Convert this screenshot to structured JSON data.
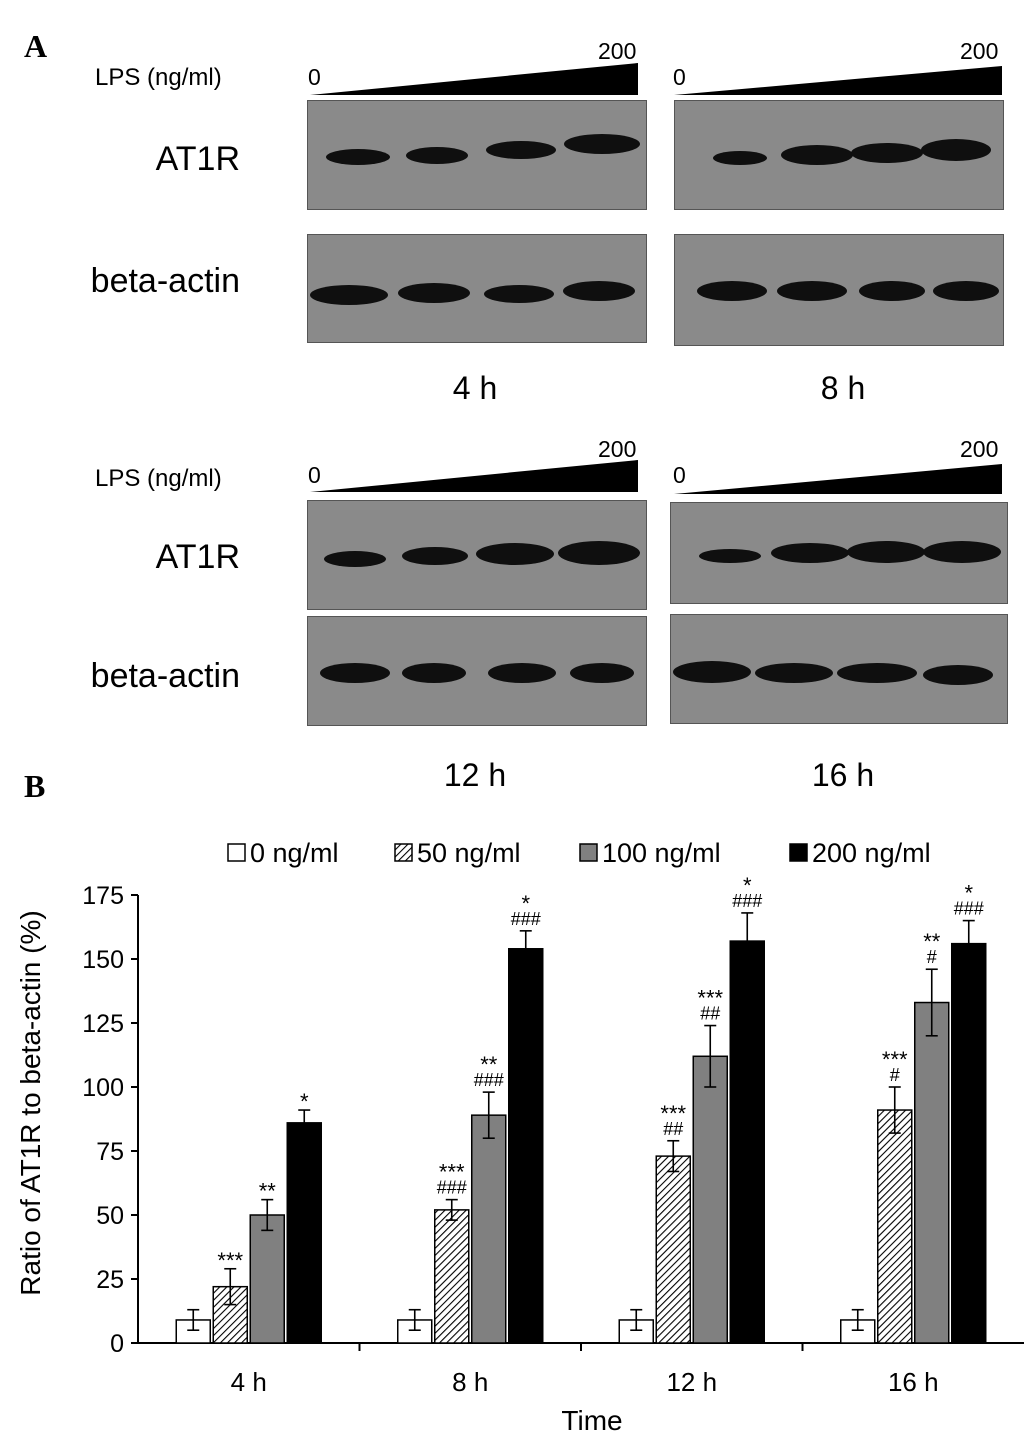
{
  "panel_a": {
    "letter": "A",
    "lps_label": "LPS (ng/ml)",
    "dose_start": "0",
    "dose_end": "200",
    "row_labels": {
      "target": "AT1R",
      "control": "beta-actin"
    },
    "blots": [
      {
        "time": "4 h"
      },
      {
        "time": "8 h"
      },
      {
        "time": "12 h"
      },
      {
        "time": "16 h"
      }
    ]
  },
  "panel_b": {
    "letter": "B"
  },
  "chart_data": {
    "type": "bar",
    "ylabel": "Ratio of AT1R to beta-actin (%)",
    "xlabel": "Time",
    "categories": [
      "4 h",
      "8 h",
      "12 h",
      "16 h"
    ],
    "ylim": [
      0,
      175
    ],
    "yticks": [
      "0",
      "25",
      "50",
      "75",
      "100",
      "125",
      "150",
      "175"
    ],
    "legend_position": "top",
    "series": [
      {
        "name": "0 ng/ml",
        "values": [
          9,
          9,
          9,
          9
        ],
        "errors": [
          4,
          4,
          4,
          4
        ],
        "fill": "white",
        "annotations": [
          [
            "",
            ""
          ],
          [
            "",
            ""
          ],
          [
            "",
            ""
          ],
          [
            "",
            ""
          ]
        ]
      },
      {
        "name": "50 ng/ml",
        "values": [
          22,
          52,
          73,
          91
        ],
        "errors": [
          7,
          4,
          6,
          9
        ],
        "fill": "hatch",
        "annotations": [
          [
            "***",
            ""
          ],
          [
            "***",
            "###"
          ],
          [
            "***",
            "##"
          ],
          [
            "***",
            "#"
          ]
        ]
      },
      {
        "name": "100 ng/ml",
        "values": [
          50,
          89,
          112,
          133
        ],
        "errors": [
          6,
          9,
          12,
          13
        ],
        "fill": "gray",
        "annotations": [
          [
            "**",
            ""
          ],
          [
            "**",
            "###"
          ],
          [
            "***",
            "##"
          ],
          [
            "**",
            "#"
          ]
        ]
      },
      {
        "name": "200 ng/ml",
        "values": [
          86,
          154,
          157,
          156
        ],
        "errors": [
          5,
          7,
          11,
          9
        ],
        "fill": "black",
        "annotations": [
          [
            "*",
            ""
          ],
          [
            "*",
            "###"
          ],
          [
            "*",
            "###"
          ],
          [
            "*",
            "###"
          ]
        ]
      }
    ],
    "colors": {
      "white": "#ffffff",
      "gray": "#808080",
      "black": "#000000",
      "hatch_line": "#000000",
      "blot_bg": "#8a8a8a"
    }
  }
}
